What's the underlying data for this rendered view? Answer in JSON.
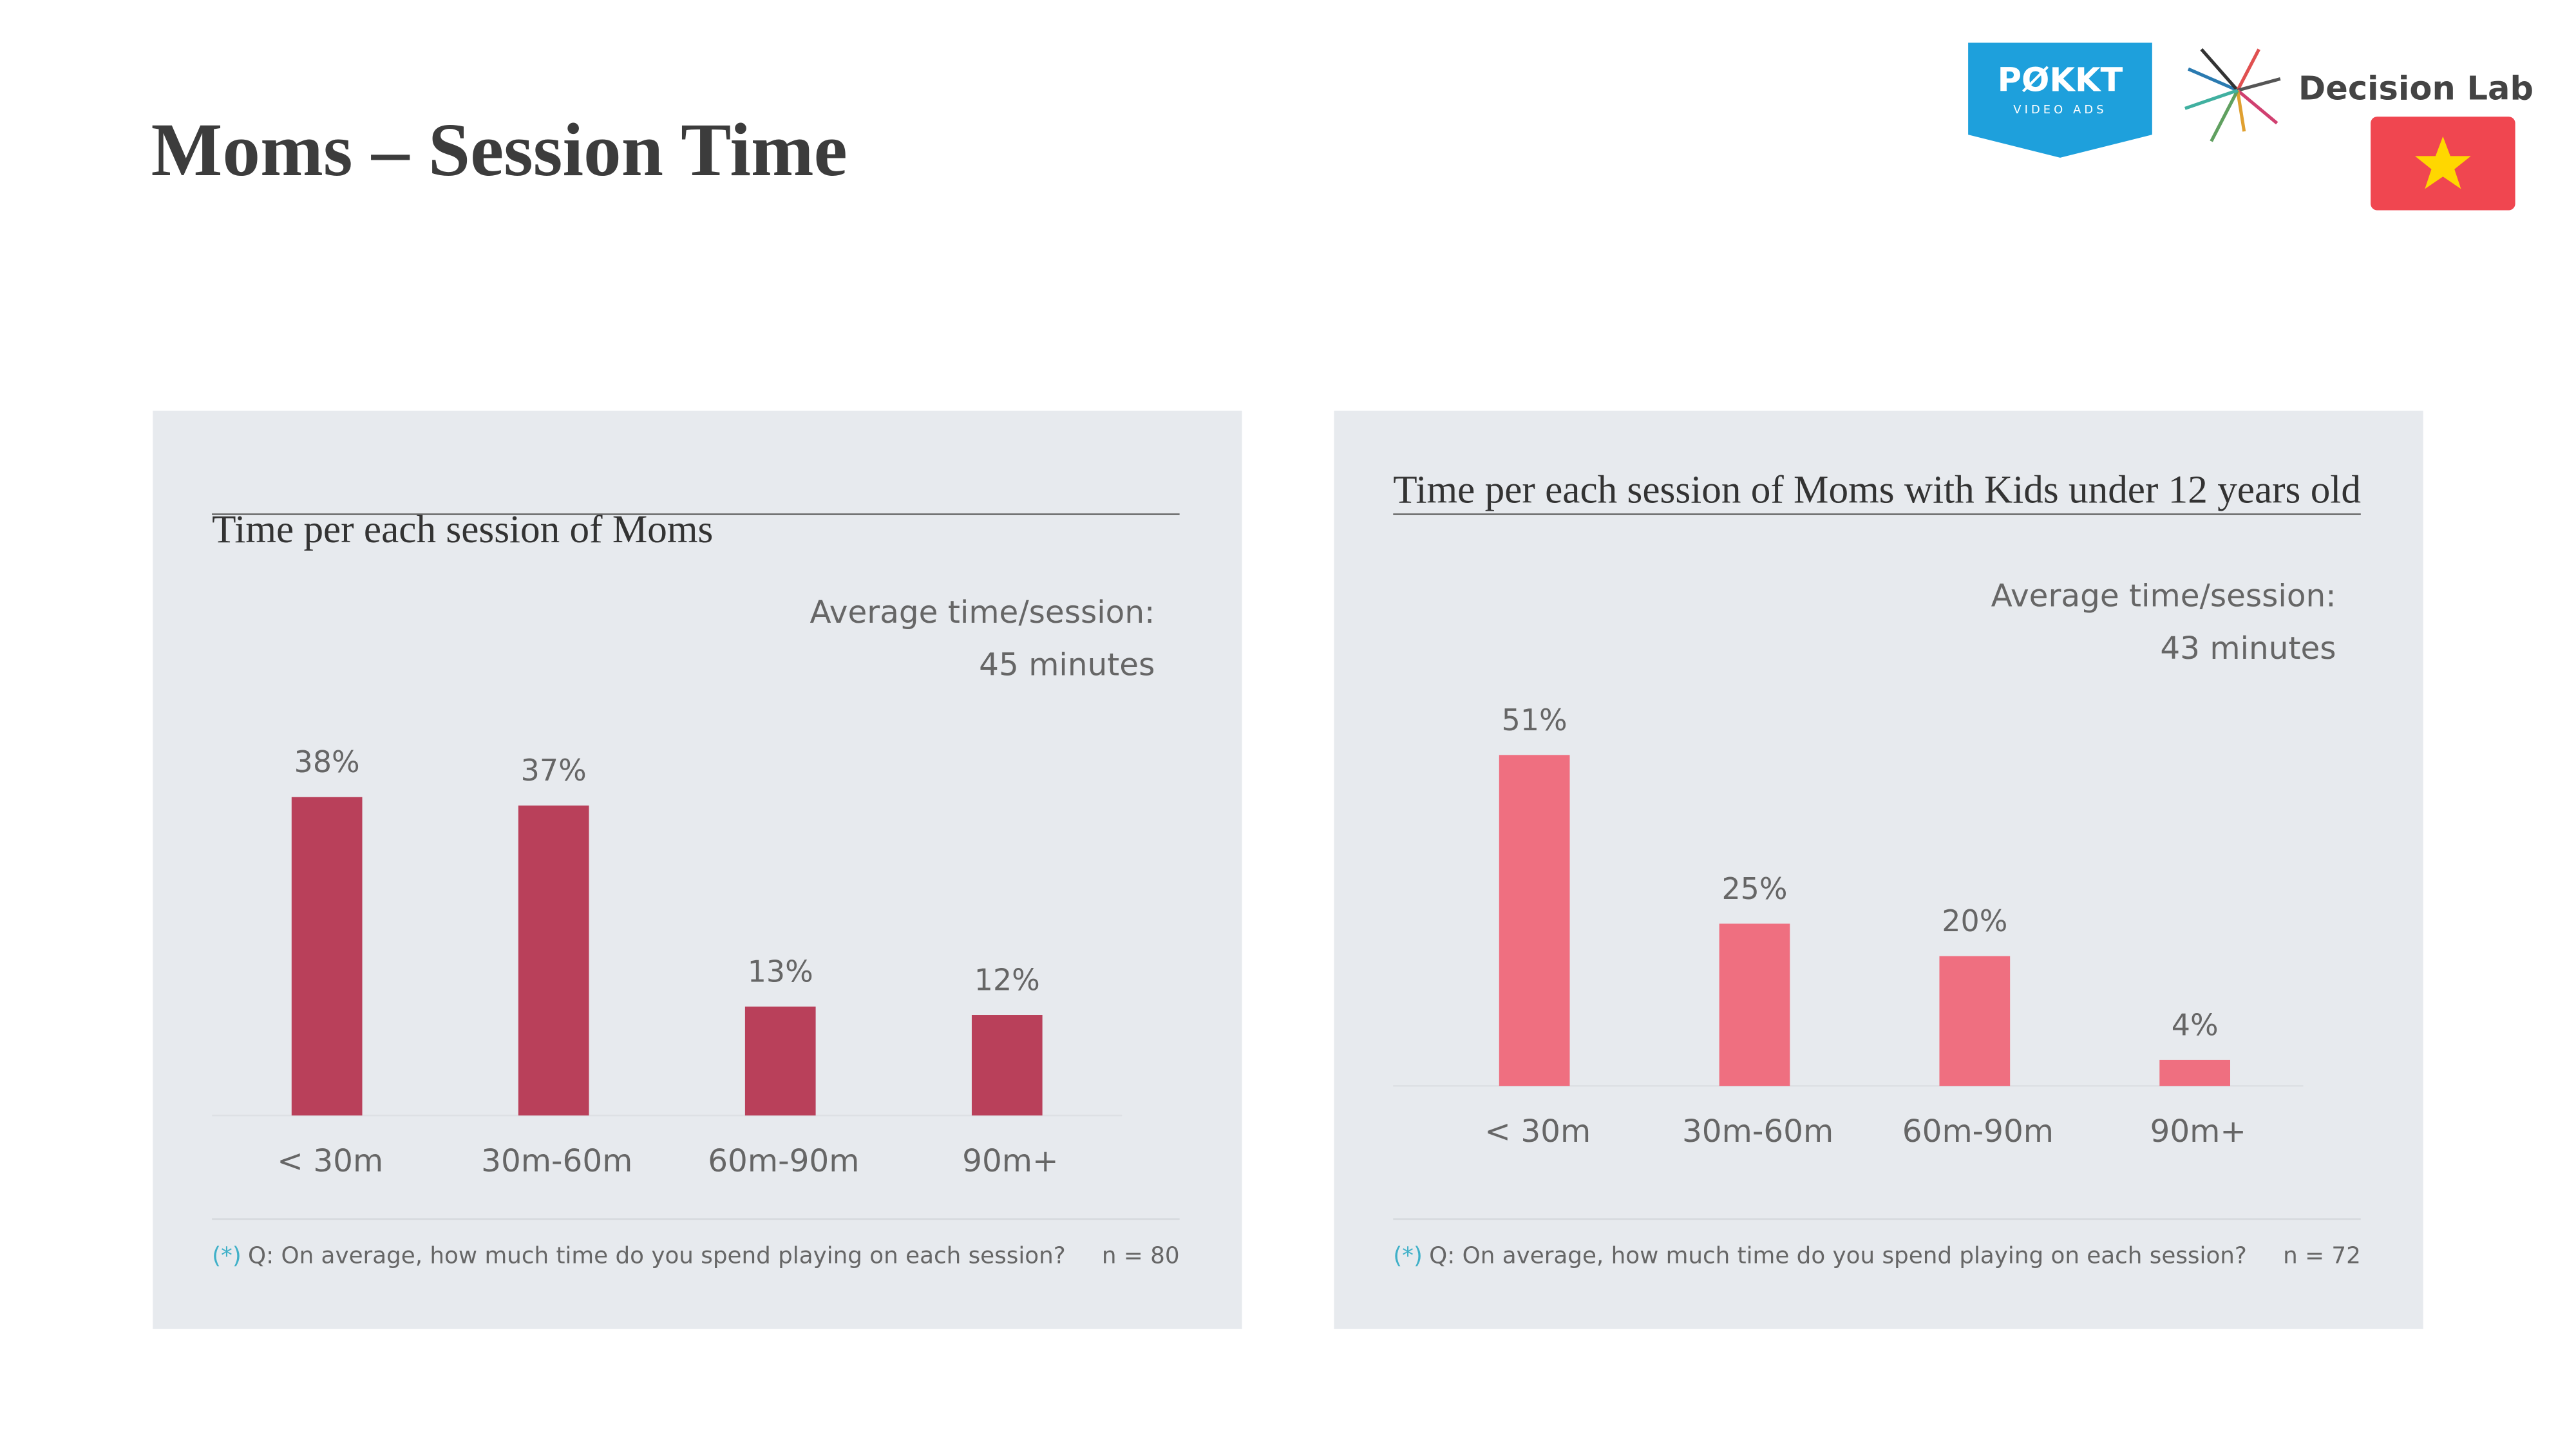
{
  "header": {
    "title": "Moms – Session Time",
    "pokkt_logo": "PØKKT",
    "pokkt_tagline": "VIDEO ADS",
    "decision_lab_logo": "Decision Lab"
  },
  "chart_data": [
    {
      "type": "bar",
      "title": "Time per each session of Moms",
      "categories": [
        "< 30m",
        "30m-60m",
        "60m-90m",
        "90m+"
      ],
      "values": [
        38,
        37,
        13,
        12
      ],
      "value_labels": [
        "38%",
        "37%",
        "13%",
        "12%"
      ],
      "color": "#b9405a",
      "annotations": [
        "Average time/session:",
        "45 minutes"
      ],
      "footnote_marker": "(*)",
      "footnote": "Q: On average, how much time do you spend playing on each session?",
      "sample_size": "n = 80"
    },
    {
      "type": "bar",
      "title": "Time per each session of Moms with Kids under 12 years old",
      "categories": [
        "< 30m",
        "30m-60m",
        "60m-90m",
        "90m+"
      ],
      "values": [
        51,
        25,
        20,
        4
      ],
      "value_labels": [
        "51%",
        "25%",
        "20%",
        "4%"
      ],
      "color": "#ef6f80",
      "annotations": [
        "Average time/session:",
        "43 minutes"
      ],
      "footnote_marker": "(*)",
      "footnote": "Q: On average, how much time do you spend playing on each session?",
      "sample_size": "n = 72"
    }
  ]
}
